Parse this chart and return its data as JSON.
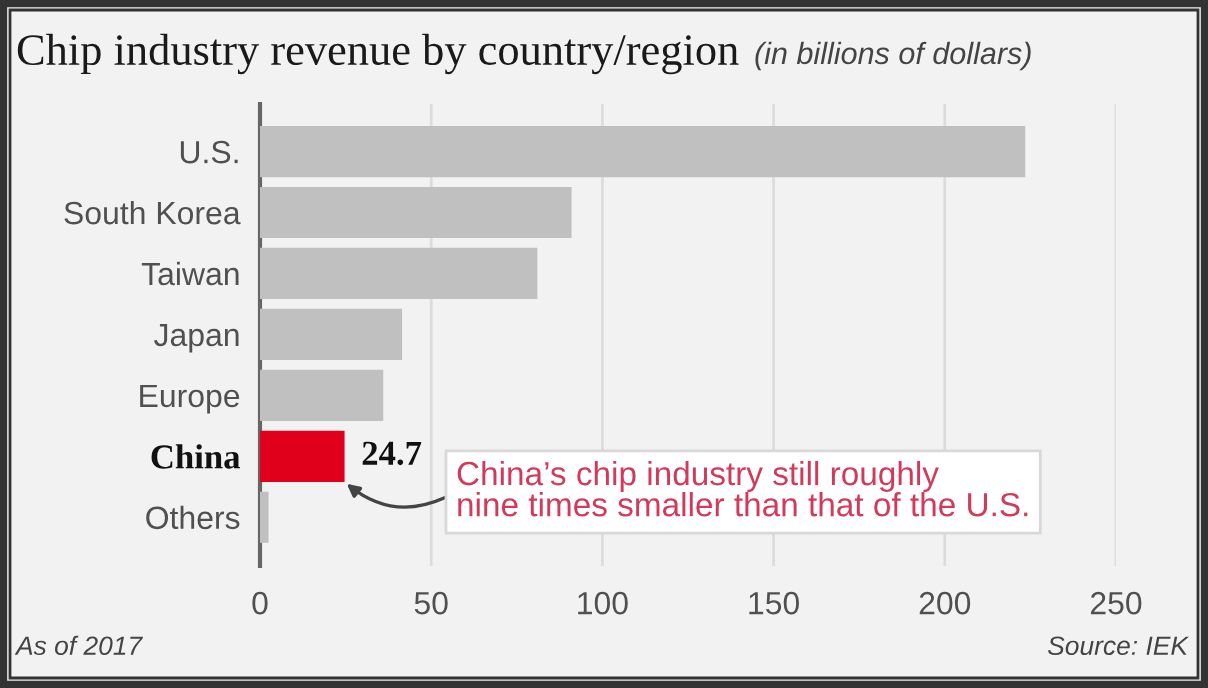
{
  "chart_data": {
    "type": "bar",
    "orientation": "horizontal",
    "title": "Chip industry revenue by country/region",
    "subtitle": "(in billions of dollars)",
    "categories": [
      "U.S.",
      "South Korea",
      "Taiwan",
      "Japan",
      "Europe",
      "China",
      "Others"
    ],
    "values": [
      223.5,
      91,
      81,
      41.5,
      36,
      24.7,
      2.5
    ],
    "colors": [
      "#c0c0c0",
      "#c0c0c0",
      "#c0c0c0",
      "#c0c0c0",
      "#c0c0c0",
      "#e0001b",
      "#c0c0c0"
    ],
    "value_labels": [
      null,
      null,
      null,
      null,
      null,
      "24.7",
      null
    ],
    "xlim": [
      0,
      250
    ],
    "xticks": [
      0,
      50,
      100,
      150,
      200,
      250
    ],
    "grid": "x",
    "annotations": [
      "As of 2017",
      "Source: IEK",
      {
        "text": "China’s chip industry still roughly\nnine times smaller than that of the U.S.",
        "x": 24.7,
        "y": "China"
      }
    ]
  }
}
